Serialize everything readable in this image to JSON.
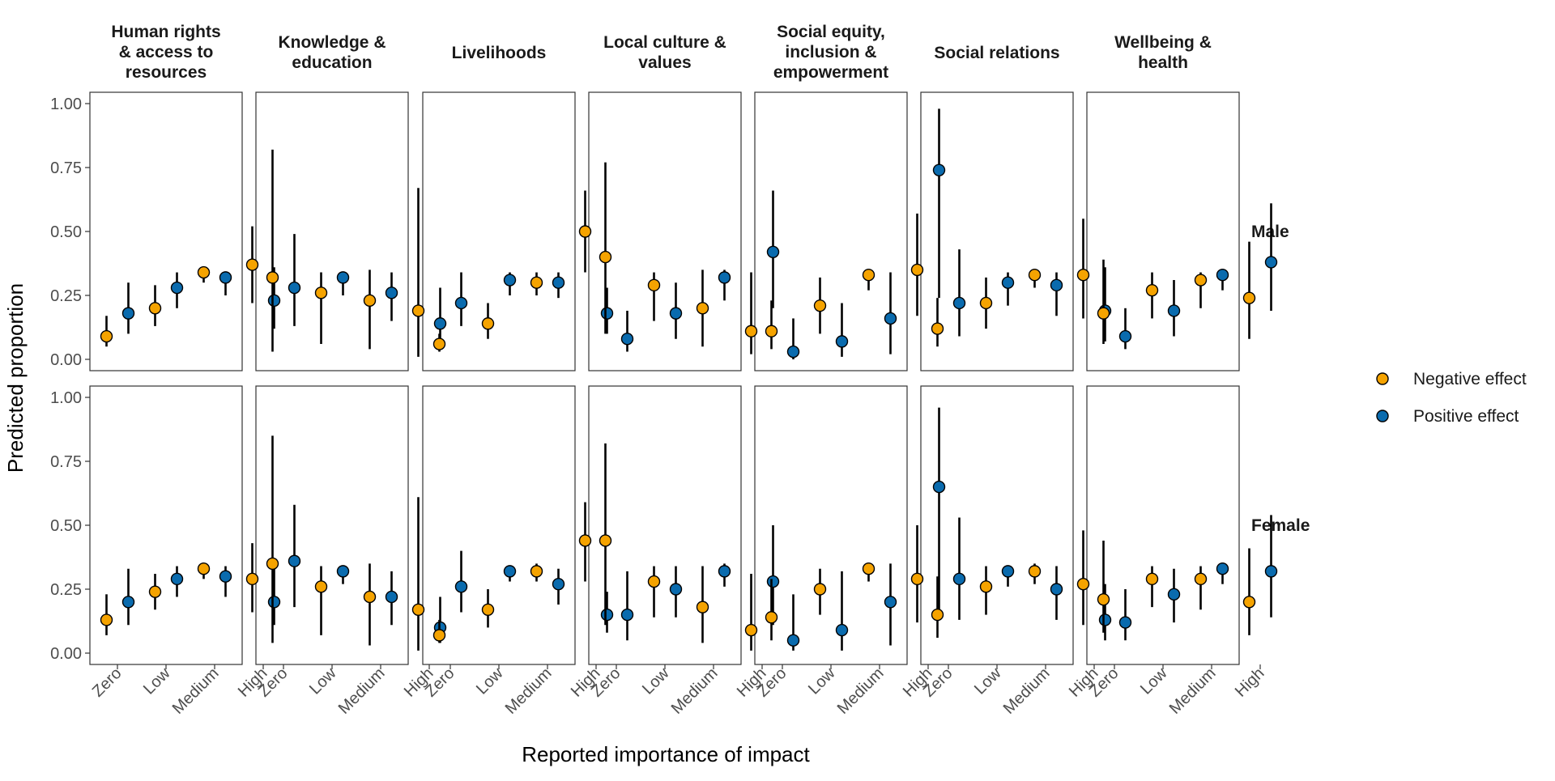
{
  "chart_data": {
    "type": "scatter",
    "subtype": "point-range faceted grid",
    "ylabel": "Predicted proportion",
    "xlabel": "Reported importance of impact",
    "x_categories": [
      "Zero",
      "Low",
      "Medium",
      "High"
    ],
    "y_ticks": [
      "0.00",
      "0.25",
      "0.50",
      "0.75",
      "1.00"
    ],
    "ylim": [
      0,
      1
    ],
    "facet_columns": [
      {
        "label_lines": [
          "Human rights",
          "& access to",
          "resources"
        ]
      },
      {
        "label_lines": [
          "Knowledge &",
          "education"
        ]
      },
      {
        "label_lines": [
          "Livelihoods"
        ]
      },
      {
        "label_lines": [
          "Local culture &",
          "values"
        ]
      },
      {
        "label_lines": [
          "Social equity,",
          "inclusion &",
          "empowerment"
        ]
      },
      {
        "label_lines": [
          "Social relations"
        ]
      },
      {
        "label_lines": [
          "Wellbeing &",
          "health"
        ]
      }
    ],
    "facet_rows": [
      "Male",
      "Female"
    ],
    "legend_position": "right",
    "series": [
      {
        "name": "Negative effect",
        "color": "#F5A300"
      },
      {
        "name": "Positive effect",
        "color": "#0A6BAE"
      }
    ],
    "panels": [
      [
        {
          "neg": [
            [
              0.09,
              0.05,
              0.17
            ],
            [
              0.2,
              0.13,
              0.29
            ],
            [
              0.34,
              0.3,
              0.36
            ],
            [
              0.37,
              0.22,
              0.52
            ]
          ],
          "pos": [
            [
              0.18,
              0.1,
              0.3
            ],
            [
              0.28,
              0.2,
              0.34
            ],
            [
              0.32,
              0.25,
              0.34
            ],
            [
              0.23,
              0.12,
              0.36
            ]
          ]
        },
        {
          "neg": [
            [
              0.32,
              0.03,
              0.82
            ],
            [
              0.26,
              0.06,
              0.34
            ],
            [
              0.23,
              0.04,
              0.35
            ],
            [
              0.19,
              0.01,
              0.67
            ]
          ],
          "pos": [
            [
              0.28,
              0.13,
              0.49
            ],
            [
              0.32,
              0.25,
              0.34
            ],
            [
              0.26,
              0.15,
              0.34
            ],
            [
              0.14,
              0.06,
              0.28
            ]
          ]
        },
        {
          "neg": [
            [
              0.06,
              0.03,
              0.1
            ],
            [
              0.14,
              0.08,
              0.22
            ],
            [
              0.3,
              0.25,
              0.34
            ],
            [
              0.5,
              0.34,
              0.66
            ]
          ],
          "pos": [
            [
              0.22,
              0.13,
              0.34
            ],
            [
              0.31,
              0.25,
              0.34
            ],
            [
              0.3,
              0.24,
              0.34
            ],
            [
              0.18,
              0.1,
              0.28
            ]
          ]
        },
        {
          "neg": [
            [
              0.4,
              0.1,
              0.77
            ],
            [
              0.29,
              0.15,
              0.34
            ],
            [
              0.2,
              0.05,
              0.35
            ],
            [
              0.11,
              0.02,
              0.34
            ]
          ],
          "pos": [
            [
              0.08,
              0.03,
              0.19
            ],
            [
              0.18,
              0.08,
              0.3
            ],
            [
              0.32,
              0.23,
              0.35
            ],
            [
              0.42,
              0.2,
              0.66
            ]
          ]
        },
        {
          "neg": [
            [
              0.11,
              0.04,
              0.23
            ],
            [
              0.21,
              0.1,
              0.32
            ],
            [
              0.33,
              0.27,
              0.35
            ],
            [
              0.35,
              0.17,
              0.57
            ]
          ],
          "pos": [
            [
              0.03,
              0.0,
              0.16
            ],
            [
              0.07,
              0.01,
              0.22
            ],
            [
              0.16,
              0.02,
              0.34
            ],
            [
              0.74,
              0.24,
              0.98
            ]
          ]
        },
        {
          "neg": [
            [
              0.12,
              0.05,
              0.24
            ],
            [
              0.22,
              0.12,
              0.32
            ],
            [
              0.33,
              0.28,
              0.35
            ],
            [
              0.33,
              0.16,
              0.55
            ]
          ],
          "pos": [
            [
              0.22,
              0.09,
              0.43
            ],
            [
              0.3,
              0.21,
              0.34
            ],
            [
              0.29,
              0.17,
              0.34
            ],
            [
              0.19,
              0.07,
              0.36
            ]
          ]
        },
        {
          "neg": [
            [
              0.18,
              0.06,
              0.39
            ],
            [
              0.27,
              0.16,
              0.34
            ],
            [
              0.31,
              0.2,
              0.34
            ],
            [
              0.24,
              0.08,
              0.46
            ]
          ],
          "pos": [
            [
              0.09,
              0.04,
              0.2
            ],
            [
              0.19,
              0.09,
              0.31
            ],
            [
              0.33,
              0.27,
              0.35
            ],
            [
              0.38,
              0.19,
              0.61
            ]
          ]
        }
      ],
      [
        {
          "neg": [
            [
              0.13,
              0.07,
              0.23
            ],
            [
              0.24,
              0.17,
              0.31
            ],
            [
              0.33,
              0.29,
              0.35
            ],
            [
              0.29,
              0.16,
              0.43
            ]
          ],
          "pos": [
            [
              0.2,
              0.11,
              0.33
            ],
            [
              0.29,
              0.22,
              0.34
            ],
            [
              0.3,
              0.22,
              0.34
            ],
            [
              0.2,
              0.11,
              0.33
            ]
          ]
        },
        {
          "neg": [
            [
              0.35,
              0.04,
              0.85
            ],
            [
              0.26,
              0.07,
              0.34
            ],
            [
              0.22,
              0.03,
              0.35
            ],
            [
              0.17,
              0.01,
              0.61
            ]
          ],
          "pos": [
            [
              0.36,
              0.18,
              0.58
            ],
            [
              0.32,
              0.27,
              0.34
            ],
            [
              0.22,
              0.11,
              0.32
            ],
            [
              0.1,
              0.04,
              0.22
            ]
          ]
        },
        {
          "neg": [
            [
              0.07,
              0.04,
              0.13
            ],
            [
              0.17,
              0.1,
              0.25
            ],
            [
              0.32,
              0.28,
              0.35
            ],
            [
              0.44,
              0.28,
              0.59
            ]
          ],
          "pos": [
            [
              0.26,
              0.16,
              0.4
            ],
            [
              0.32,
              0.28,
              0.34
            ],
            [
              0.27,
              0.19,
              0.33
            ],
            [
              0.15,
              0.08,
              0.24
            ]
          ]
        },
        {
          "neg": [
            [
              0.44,
              0.11,
              0.82
            ],
            [
              0.28,
              0.14,
              0.34
            ],
            [
              0.18,
              0.04,
              0.34
            ],
            [
              0.09,
              0.01,
              0.31
            ]
          ],
          "pos": [
            [
              0.15,
              0.05,
              0.32
            ],
            [
              0.25,
              0.14,
              0.34
            ],
            [
              0.32,
              0.26,
              0.35
            ],
            [
              0.28,
              0.11,
              0.5
            ]
          ]
        },
        {
          "neg": [
            [
              0.14,
              0.05,
              0.29
            ],
            [
              0.25,
              0.15,
              0.33
            ],
            [
              0.33,
              0.28,
              0.35
            ],
            [
              0.29,
              0.12,
              0.5
            ]
          ],
          "pos": [
            [
              0.05,
              0.01,
              0.23
            ],
            [
              0.09,
              0.01,
              0.32
            ],
            [
              0.2,
              0.03,
              0.35
            ],
            [
              0.65,
              0.16,
              0.96
            ]
          ]
        },
        {
          "neg": [
            [
              0.15,
              0.06,
              0.3
            ],
            [
              0.26,
              0.15,
              0.34
            ],
            [
              0.32,
              0.27,
              0.35
            ],
            [
              0.27,
              0.11,
              0.48
            ]
          ],
          "pos": [
            [
              0.29,
              0.13,
              0.53
            ],
            [
              0.32,
              0.26,
              0.34
            ],
            [
              0.25,
              0.13,
              0.34
            ],
            [
              0.13,
              0.05,
              0.27
            ]
          ]
        },
        {
          "neg": [
            [
              0.21,
              0.08,
              0.44
            ],
            [
              0.29,
              0.18,
              0.34
            ],
            [
              0.29,
              0.17,
              0.34
            ],
            [
              0.2,
              0.07,
              0.41
            ]
          ],
          "pos": [
            [
              0.12,
              0.05,
              0.25
            ],
            [
              0.23,
              0.12,
              0.33
            ],
            [
              0.33,
              0.27,
              0.35
            ],
            [
              0.32,
              0.14,
              0.54
            ]
          ]
        }
      ]
    ]
  }
}
